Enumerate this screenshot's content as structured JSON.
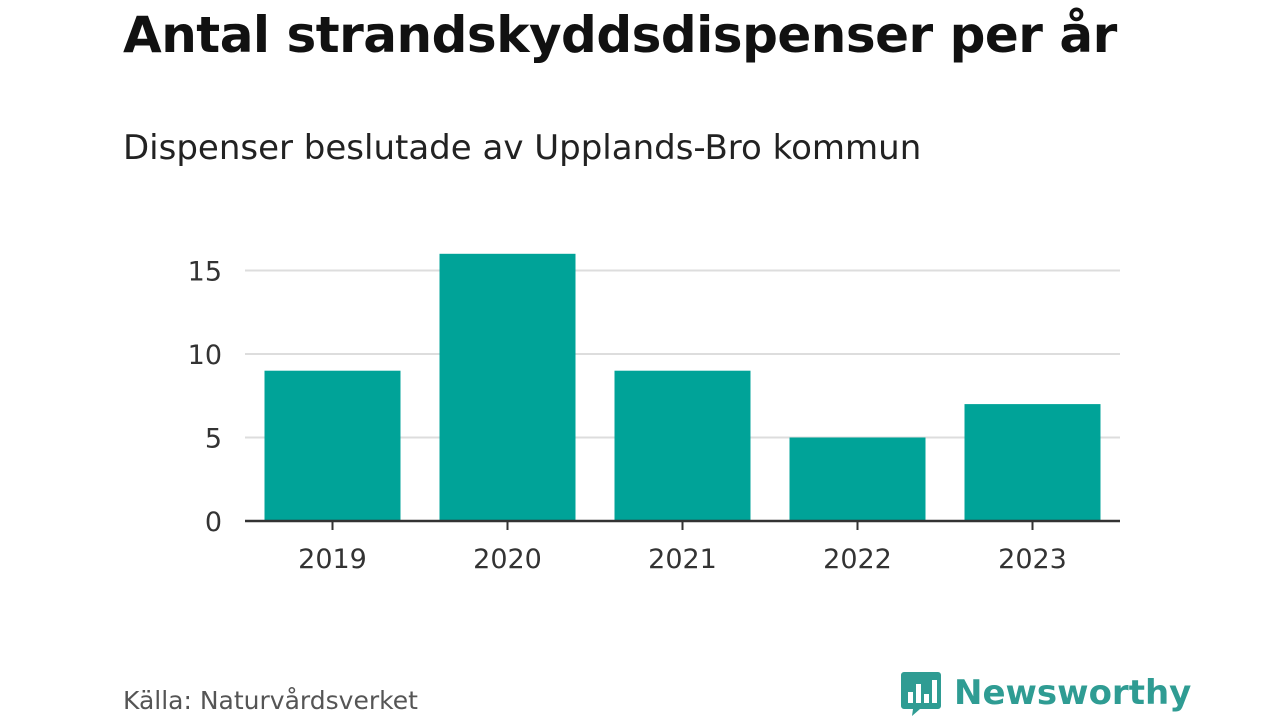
{
  "header": {
    "title": "Antal strandskyddsdispenser per år",
    "subtitle": "Dispenser beslutade av Upplands-Bro kommun"
  },
  "footer": {
    "source": "Källa: Naturvårdsverket",
    "brand": "Newsworthy",
    "brand_icon": "bar-chart-speech-bubble-icon"
  },
  "colors": {
    "bar": "#00A398",
    "grid": "#dddddd",
    "axis": "#333333",
    "brand": "#2f9c93"
  },
  "chart_data": {
    "type": "bar",
    "title": "Antal strandskyddsdispenser per år",
    "subtitle": "Dispenser beslutade av Upplands-Bro kommun",
    "categories": [
      "2019",
      "2020",
      "2021",
      "2022",
      "2023"
    ],
    "values": [
      9,
      16,
      9,
      5,
      7
    ],
    "xlabel": "",
    "ylabel": "",
    "ylim": [
      0,
      16
    ],
    "yticks": [
      0,
      5,
      10,
      15
    ],
    "grid": true,
    "legend": "none"
  }
}
